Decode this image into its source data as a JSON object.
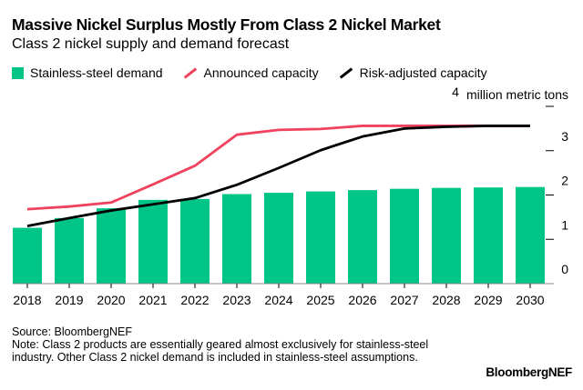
{
  "title": "Massive Nickel Surplus Mostly From Class 2 Nickel Market",
  "subtitle": "Class 2 nickel supply and demand forecast",
  "source": "Source: BloombergNEF",
  "note": "Note: Class 2 products are essentially geared almost exclusively for stainless-steel industry. Other Class 2 nickel demand is included in stainless-steel assumptions.",
  "logo": "BloombergNEF",
  "chart_data": {
    "type": "bar+line",
    "title": "Massive Nickel Surplus Mostly From Class 2 Nickel Market",
    "subtitle": "Class 2 nickel supply and demand forecast",
    "ylabel": "million metric tons",
    "ylim": [
      0,
      4
    ],
    "yticks": [
      "0",
      "1",
      "2",
      "3",
      "4"
    ],
    "categories": [
      "2018",
      "2019",
      "2020",
      "2021",
      "2022",
      "2023",
      "2024",
      "2025",
      "2026",
      "2027",
      "2028",
      "2029",
      "2030"
    ],
    "legend_position": "top-left",
    "series": [
      {
        "name": "Stainless-steel demand",
        "type": "bar",
        "color": "#00c587",
        "values": [
          1.26,
          1.48,
          1.7,
          1.89,
          1.91,
          2.02,
          2.05,
          2.08,
          2.11,
          2.14,
          2.16,
          2.17,
          2.18
        ]
      },
      {
        "name": "Announced capacity",
        "type": "line",
        "color": "#f0425c",
        "values": [
          1.68,
          1.74,
          1.83,
          2.24,
          2.66,
          3.36,
          3.47,
          3.49,
          3.56,
          3.56,
          3.56,
          3.56,
          3.56
        ]
      },
      {
        "name": "Risk-adjusted capacity",
        "type": "line",
        "color": "#000000",
        "values": [
          1.3,
          1.48,
          1.65,
          1.79,
          1.93,
          2.23,
          2.61,
          3.01,
          3.32,
          3.5,
          3.54,
          3.56,
          3.56
        ]
      }
    ]
  }
}
